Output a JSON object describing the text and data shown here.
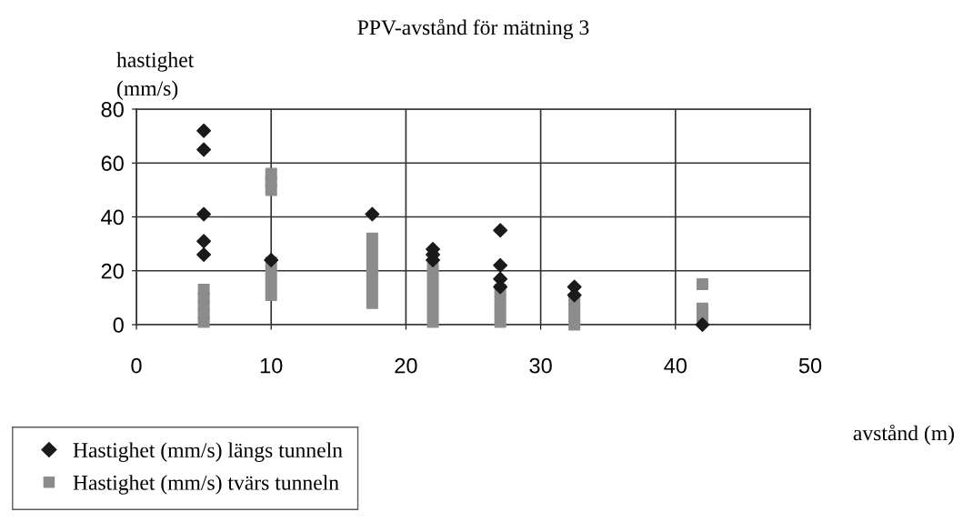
{
  "chart_data": {
    "type": "scatter",
    "title": "PPV-avstånd för mätning 3",
    "xlabel": "avstånd (m)",
    "ylabel": "hastighet\n(mm/s)",
    "xlim": [
      0,
      50
    ],
    "xticks": [
      0,
      10,
      20,
      30,
      40,
      50
    ],
    "ylim": [
      0,
      80
    ],
    "yticks": [
      0,
      20,
      40,
      60,
      80
    ],
    "grid": true,
    "legend": "bottom left",
    "series": [
      {
        "name": "Hastighet (mm/s) längs tunneln",
        "color": "#1a1a1a",
        "marker": "diamond",
        "x": [
          5,
          5,
          5,
          5,
          5,
          10,
          17.5,
          22,
          22,
          22,
          27,
          27,
          27,
          27,
          32.5,
          32.5,
          42
        ],
        "values": [
          72,
          65,
          41,
          31,
          26,
          24,
          41,
          28,
          26,
          24,
          35,
          22,
          17,
          14,
          14,
          11,
          0
        ]
      },
      {
        "name": "Hastighet (mm/s) tvärs tunneln",
        "color": "#8c8c8c",
        "marker": "square",
        "x": [
          5,
          5,
          5,
          5,
          5,
          10,
          10,
          10,
          10,
          10,
          10,
          10,
          17.5,
          17.5,
          17.5,
          17.5,
          17.5,
          17.5,
          17.5,
          22,
          22,
          22,
          22,
          22,
          22,
          27,
          27,
          27,
          27,
          32.5,
          32.5,
          32.5,
          32.5,
          42,
          42,
          42
        ],
        "values": [
          1,
          4,
          7,
          10,
          13,
          50,
          53,
          56,
          11,
          15,
          19,
          23,
          8,
          12,
          16,
          20,
          24,
          28,
          32,
          1,
          5,
          9,
          13,
          17,
          21,
          1,
          5,
          9,
          13,
          0,
          3,
          6,
          9,
          15,
          6,
          3
        ]
      }
    ]
  }
}
